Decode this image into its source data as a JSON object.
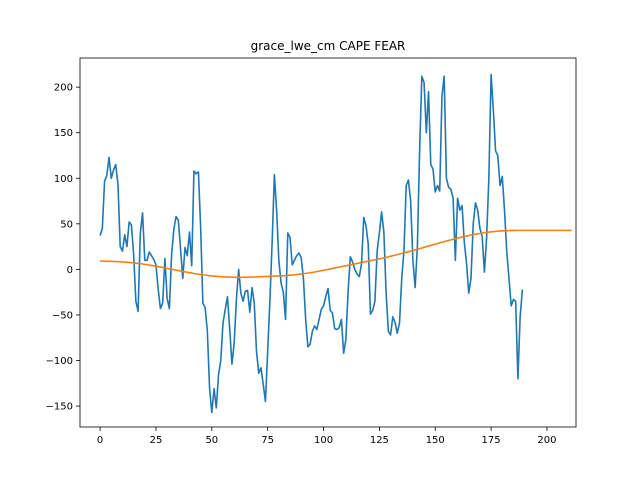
{
  "chart_data": {
    "type": "line",
    "title": "grace_lwe_cm CAPE FEAR",
    "xlabel": "",
    "ylabel": "",
    "xlim": [
      -9,
      213
    ],
    "ylim": [
      -173,
      232
    ],
    "x_ticks": [
      0,
      25,
      50,
      75,
      100,
      125,
      150,
      175,
      200
    ],
    "y_ticks": [
      -150,
      -100,
      -50,
      0,
      50,
      100,
      150,
      200
    ],
    "grid": false,
    "series": [
      {
        "color": "#1f77b4",
        "values": [
          37,
          45,
          97,
          103,
          123,
          100,
          109,
          115,
          93,
          25,
          20,
          38,
          25,
          52,
          49,
          17,
          -35,
          -46,
          40,
          62,
          10,
          10,
          19,
          15,
          11,
          5,
          -22,
          -43,
          -37,
          12,
          -32,
          -43,
          16,
          44,
          58,
          54,
          23,
          -10,
          24,
          15,
          41,
          4,
          108,
          105,
          107,
          46,
          -37,
          -42,
          -68,
          -131,
          -157,
          -131,
          -152,
          -116,
          -100,
          -59,
          -44,
          -30,
          -65,
          -104,
          -81,
          -33,
          0,
          -26,
          -35,
          -24,
          -23,
          -47,
          -20,
          -37,
          -90,
          -114,
          -108,
          -126,
          -145,
          -90,
          -34,
          30,
          104,
          65,
          10,
          -15,
          -25,
          -55,
          40,
          35,
          5,
          10,
          15,
          18,
          13,
          -10,
          -55,
          -85,
          -82,
          -68,
          -62,
          -66,
          -55,
          -44,
          -40,
          -30,
          -21,
          -45,
          -48,
          -65,
          -66,
          -64,
          -55,
          -92,
          -77,
          -24,
          14,
          8,
          0,
          -5,
          -8,
          6,
          57,
          48,
          28,
          -49,
          -45,
          -35,
          20,
          40,
          63,
          41,
          -25,
          -68,
          -72,
          -52,
          -58,
          -70,
          -59,
          -10,
          20,
          92,
          98,
          75,
          10,
          -20,
          25,
          130,
          212,
          205,
          150,
          195,
          115,
          110,
          85,
          92,
          86,
          190,
          212,
          100,
          90,
          88,
          78,
          10,
          78,
          65,
          70,
          30,
          7,
          -26,
          -10,
          50,
          73,
          65,
          45,
          36,
          -3,
          35,
          100,
          214,
          175,
          130,
          125,
          92,
          102,
          65,
          20,
          -10,
          -40,
          -33,
          -35,
          -120,
          -52,
          -22
        ]
      },
      {
        "color": "#ff7f0e",
        "values": [
          9.0,
          9.0,
          9.0,
          8.9,
          8.9,
          8.8,
          8.7,
          8.6,
          8.5,
          8.4,
          8.2,
          8.0,
          7.8,
          7.6,
          7.4,
          7.1,
          6.8,
          6.5,
          6.2,
          5.9,
          5.5,
          5.1,
          4.7,
          4.3,
          3.9,
          3.4,
          3.0,
          2.5,
          2.1,
          1.6,
          1.1,
          0.6,
          0.1,
          -0.4,
          -0.8,
          -1.3,
          -1.8,
          -2.3,
          -2.7,
          -3.2,
          -3.6,
          -4.0,
          -4.5,
          -4.9,
          -5.2,
          -5.6,
          -6.0,
          -6.3,
          -6.6,
          -6.9,
          -7.2,
          -7.4,
          -7.6,
          -7.8,
          -8.0,
          -8.2,
          -8.3,
          -8.4,
          -8.5,
          -8.6,
          -8.6,
          -8.7,
          -8.7,
          -8.7,
          -8.7,
          -8.7,
          -8.6,
          -8.6,
          -8.5,
          -8.4,
          -8.3,
          -8.1,
          -8.0,
          -7.9,
          -7.8,
          -7.7,
          -7.6,
          -7.5,
          -7.4,
          -7.3,
          -7.2,
          -7.1,
          -7.0,
          -6.8,
          -6.6,
          -6.4,
          -6.2,
          -6.0,
          -5.7,
          -5.4,
          -5.1,
          -4.8,
          -4.4,
          -4.1,
          -3.7,
          -3.3,
          -2.9,
          -2.4,
          -2.0,
          -1.5,
          -1.0,
          -0.5,
          0.0,
          0.5,
          1.0,
          1.5,
          2.0,
          2.5,
          3.0,
          3.5,
          4.0,
          4.5,
          5.0,
          5.5,
          6.0,
          6.5,
          7.0,
          7.5,
          8.0,
          8.5,
          9.0,
          9.5,
          10.0,
          10.5,
          11.0,
          11.6,
          12.1,
          12.7,
          13.2,
          13.8,
          14.4,
          15.0,
          15.6,
          16.2,
          16.8,
          17.4,
          18.1,
          18.7,
          19.4,
          20.0,
          20.7,
          21.4,
          22.1,
          22.8,
          23.5,
          24.2,
          24.9,
          25.6,
          26.3,
          27.0,
          27.7,
          28.4,
          29.1,
          29.8,
          30.5,
          31.1,
          31.8,
          32.4,
          33.1,
          33.7,
          34.3,
          34.9,
          35.5,
          36.0,
          36.6,
          37.1,
          37.6,
          38.1,
          38.6,
          39.0,
          39.4,
          39.8,
          40.2,
          40.5,
          40.9,
          41.2,
          41.4,
          41.7,
          41.9,
          42.1,
          42.3,
          42.4,
          42.5,
          42.6,
          42.7,
          42.7,
          42.8,
          42.8,
          42.8,
          42.8,
          42.8,
          42.8,
          42.8,
          42.8,
          42.8,
          42.8,
          42.8,
          42.8,
          42.8,
          42.8,
          42.8,
          42.8,
          42.8,
          42.8,
          42.8,
          42.8,
          42.8,
          42.8,
          42.8,
          42.8,
          42.8,
          42.8
        ]
      }
    ]
  }
}
